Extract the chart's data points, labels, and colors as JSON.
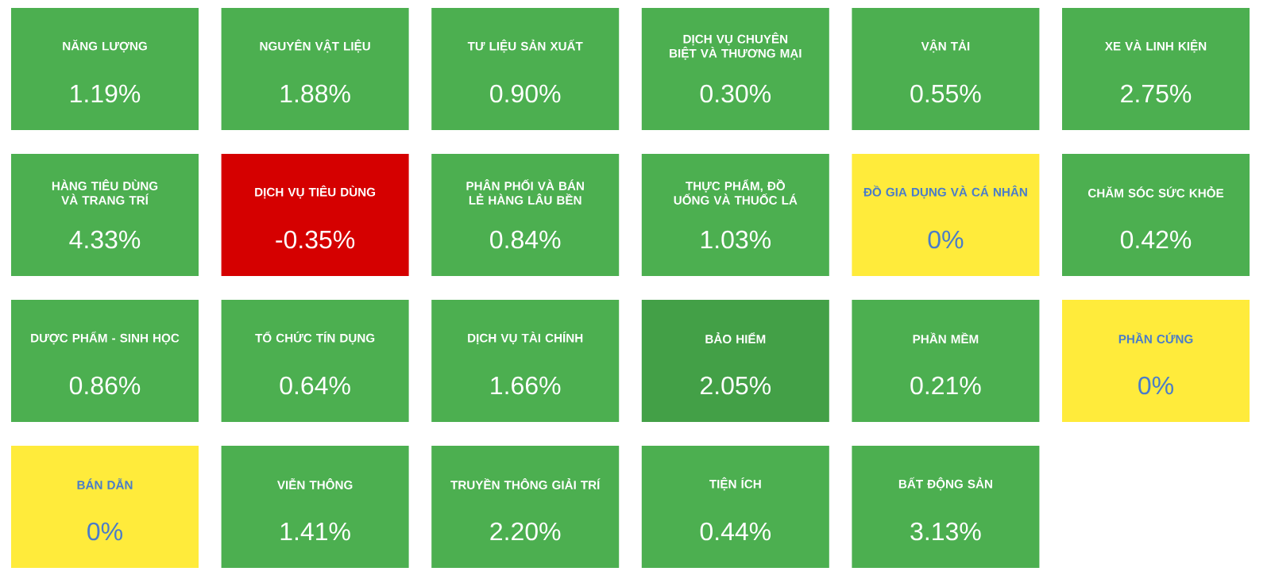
{
  "chart_data": {
    "type": "other",
    "categories": [
      "NĂNG LƯỢNG",
      "NGUYÊN VẬT LIỆU",
      "TƯ LIỆU SẢN XUẤT",
      "DỊCH VỤ CHUYÊN BIỆT VÀ THƯƠNG MẠI",
      "VẬN TẢI",
      "XE VÀ LINH KIỆN",
      "HÀNG TIÊU DÙNG VÀ TRANG TRÍ",
      "DỊCH VỤ TIÊU DÙNG",
      "PHÂN PHỐI VÀ BÁN LẺ HÀNG LÂU BỀN",
      "THỰC PHẨM, ĐỒ UỐNG VÀ THUỐC LÁ",
      "ĐỒ GIA DỤNG VÀ CÁ NHÂN",
      "CHĂM SÓC SỨC KHỎE",
      "DƯỢC PHẨM - SINH HỌC",
      "TỔ CHỨC TÍN DỤNG",
      "DỊCH VỤ TÀI CHÍNH",
      "BẢO HIỂM",
      "PHẦN MỀM",
      "PHẦN CỨNG",
      "BÁN DẪN",
      "VIỄN THÔNG",
      "TRUYỀN THÔNG GIẢI TRÍ",
      "TIỆN ÍCH",
      "BẤT ĐỘNG SẢN"
    ],
    "values": [
      1.19,
      1.88,
      0.9,
      0.3,
      0.55,
      2.75,
      4.33,
      -0.35,
      0.84,
      1.03,
      0,
      0.42,
      0.86,
      0.64,
      1.66,
      2.05,
      0.21,
      0,
      0,
      1.41,
      2.2,
      0.44,
      3.13
    ],
    "value_labels": [
      "1.19%",
      "1.88%",
      "0.90%",
      "0.30%",
      "0.55%",
      "2.75%",
      "4.33%",
      "-0.35%",
      "0.84%",
      "1.03%",
      "0%",
      "0.42%",
      "0.86%",
      "0.64%",
      "1.66%",
      "2.05%",
      "0.21%",
      "0%",
      "0%",
      "1.41%",
      "2.20%",
      "0.44%",
      "3.13%"
    ],
    "colors": [
      "#4caf50",
      "#4caf50",
      "#4caf50",
      "#4caf50",
      "#4caf50",
      "#4caf50",
      "#4caf50",
      "#d50000",
      "#4caf50",
      "#4caf50",
      "#ffeb3b",
      "#4caf50",
      "#4caf50",
      "#4caf50",
      "#4caf50",
      "#43a047",
      "#4caf50",
      "#ffeb3b",
      "#ffeb3b",
      "#4caf50",
      "#4caf50",
      "#4caf50",
      "#4caf50"
    ]
  }
}
